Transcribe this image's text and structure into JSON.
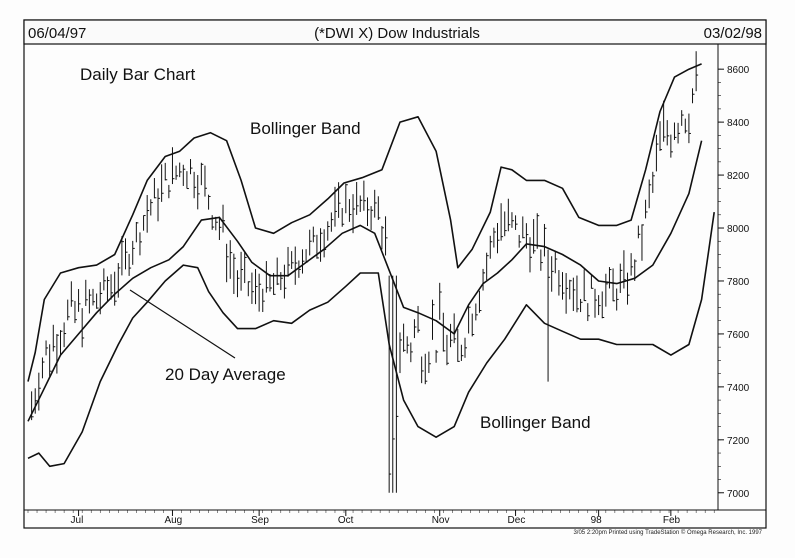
{
  "header": {
    "start_date": "06/04/97",
    "title": "(*DWI X) Dow Industrials",
    "end_date": "03/02/98"
  },
  "chart_data": {
    "type": "bar",
    "title": "(*DWI X) Dow Industrials",
    "subtitle": "Daily Bar Chart",
    "date_range": [
      "06/04/97",
      "03/02/98"
    ],
    "ylim": [
      6950,
      8680
    ],
    "y_ticks": [
      7000,
      7200,
      7400,
      7600,
      7800,
      8000,
      8200,
      8400,
      8600
    ],
    "y_tick_labels": [
      "7000",
      "7200",
      "7400",
      "7600",
      "7800",
      "8000",
      "8200",
      "8400",
      "8600"
    ],
    "x_tick_labels": [
      "Jul",
      "Aug",
      "Sep",
      "Oct",
      "Nov",
      "Dec",
      "98",
      "Feb"
    ],
    "annotations": {
      "upper_band": "Bollinger Band",
      "moving_average": "20 Day Average",
      "lower_band": "Bollinger Band"
    },
    "credit": "3/05  2:20pm  Printed using TradeStation © Omega Research, Inc. 1997",
    "grid": false,
    "series": [
      {
        "role": "price-bars",
        "approx_close_by_month": [
          [
            "Jun",
            7600
          ],
          [
            "Jul",
            7900
          ],
          [
            "Aug",
            8150
          ],
          [
            "Sep",
            7700
          ],
          [
            "Oct",
            8100
          ],
          [
            "Nov",
            7500
          ],
          [
            "Dec",
            7900
          ],
          [
            "98",
            7750
          ],
          [
            "Feb",
            8500
          ]
        ]
      },
      {
        "role": "upper-bollinger-band",
        "points": [
          [
            0,
            7420
          ],
          [
            4,
            7530
          ],
          [
            9,
            7730
          ],
          [
            18,
            7830
          ],
          [
            28,
            7850
          ],
          [
            38,
            7860
          ],
          [
            48,
            7900
          ],
          [
            58,
            8050
          ],
          [
            66,
            8180
          ],
          [
            76,
            8270
          ],
          [
            84,
            8290
          ],
          [
            92,
            8340
          ],
          [
            101,
            8360
          ],
          [
            110,
            8330
          ],
          [
            118,
            8180
          ],
          [
            126,
            8000
          ],
          [
            136,
            7980
          ],
          [
            146,
            8020
          ],
          [
            156,
            8050
          ],
          [
            166,
            8110
          ],
          [
            175,
            8170
          ],
          [
            185,
            8190
          ],
          [
            196,
            8220
          ],
          [
            206,
            8400
          ],
          [
            216,
            8420
          ],
          [
            226,
            8290
          ],
          [
            234,
            8030
          ],
          [
            238,
            7850
          ],
          [
            246,
            7920
          ],
          [
            256,
            8060
          ],
          [
            262,
            8230
          ],
          [
            268,
            8220
          ],
          [
            276,
            8180
          ],
          [
            286,
            8180
          ],
          [
            296,
            8150
          ],
          [
            305,
            8040
          ],
          [
            316,
            8010
          ],
          [
            326,
            8010
          ],
          [
            334,
            8030
          ],
          [
            342,
            8220
          ],
          [
            350,
            8440
          ],
          [
            358,
            8570
          ],
          [
            366,
            8600
          ],
          [
            373,
            8620
          ]
        ]
      },
      {
        "role": "twenty-day-average",
        "points": [
          [
            0,
            7270
          ],
          [
            8,
            7380
          ],
          [
            18,
            7520
          ],
          [
            28,
            7600
          ],
          [
            38,
            7680
          ],
          [
            48,
            7750
          ],
          [
            58,
            7810
          ],
          [
            68,
            7850
          ],
          [
            78,
            7880
          ],
          [
            86,
            7930
          ],
          [
            96,
            8030
          ],
          [
            106,
            8040
          ],
          [
            116,
            7950
          ],
          [
            124,
            7870
          ],
          [
            134,
            7820
          ],
          [
            144,
            7820
          ],
          [
            154,
            7870
          ],
          [
            164,
            7920
          ],
          [
            174,
            7980
          ],
          [
            184,
            8010
          ],
          [
            192,
            7980
          ],
          [
            200,
            7840
          ],
          [
            208,
            7700
          ],
          [
            216,
            7680
          ],
          [
            226,
            7650
          ],
          [
            236,
            7600
          ],
          [
            244,
            7710
          ],
          [
            252,
            7790
          ],
          [
            260,
            7830
          ],
          [
            268,
            7880
          ],
          [
            276,
            7940
          ],
          [
            286,
            7930
          ],
          [
            296,
            7900
          ],
          [
            306,
            7860
          ],
          [
            316,
            7800
          ],
          [
            326,
            7790
          ],
          [
            336,
            7810
          ],
          [
            346,
            7860
          ],
          [
            356,
            7980
          ],
          [
            366,
            8130
          ],
          [
            373,
            8330
          ]
        ]
      },
      {
        "role": "lower-bollinger-band",
        "points": [
          [
            0,
            7130
          ],
          [
            6,
            7150
          ],
          [
            12,
            7100
          ],
          [
            20,
            7110
          ],
          [
            30,
            7230
          ],
          [
            40,
            7420
          ],
          [
            50,
            7560
          ],
          [
            58,
            7660
          ],
          [
            66,
            7720
          ],
          [
            76,
            7800
          ],
          [
            86,
            7860
          ],
          [
            94,
            7850
          ],
          [
            100,
            7760
          ],
          [
            108,
            7680
          ],
          [
            116,
            7620
          ],
          [
            126,
            7620
          ],
          [
            136,
            7650
          ],
          [
            146,
            7640
          ],
          [
            156,
            7690
          ],
          [
            166,
            7720
          ],
          [
            176,
            7780
          ],
          [
            184,
            7830
          ],
          [
            194,
            7830
          ],
          [
            200,
            7560
          ],
          [
            208,
            7350
          ],
          [
            216,
            7250
          ],
          [
            226,
            7210
          ],
          [
            236,
            7250
          ],
          [
            244,
            7380
          ],
          [
            254,
            7490
          ],
          [
            264,
            7580
          ],
          [
            276,
            7710
          ],
          [
            286,
            7640
          ],
          [
            296,
            7610
          ],
          [
            306,
            7580
          ],
          [
            316,
            7580
          ],
          [
            326,
            7560
          ],
          [
            336,
            7560
          ],
          [
            346,
            7560
          ],
          [
            356,
            7520
          ],
          [
            366,
            7560
          ],
          [
            373,
            7730
          ],
          [
            376,
            7870
          ],
          [
            380,
            8060
          ]
        ]
      }
    ]
  }
}
